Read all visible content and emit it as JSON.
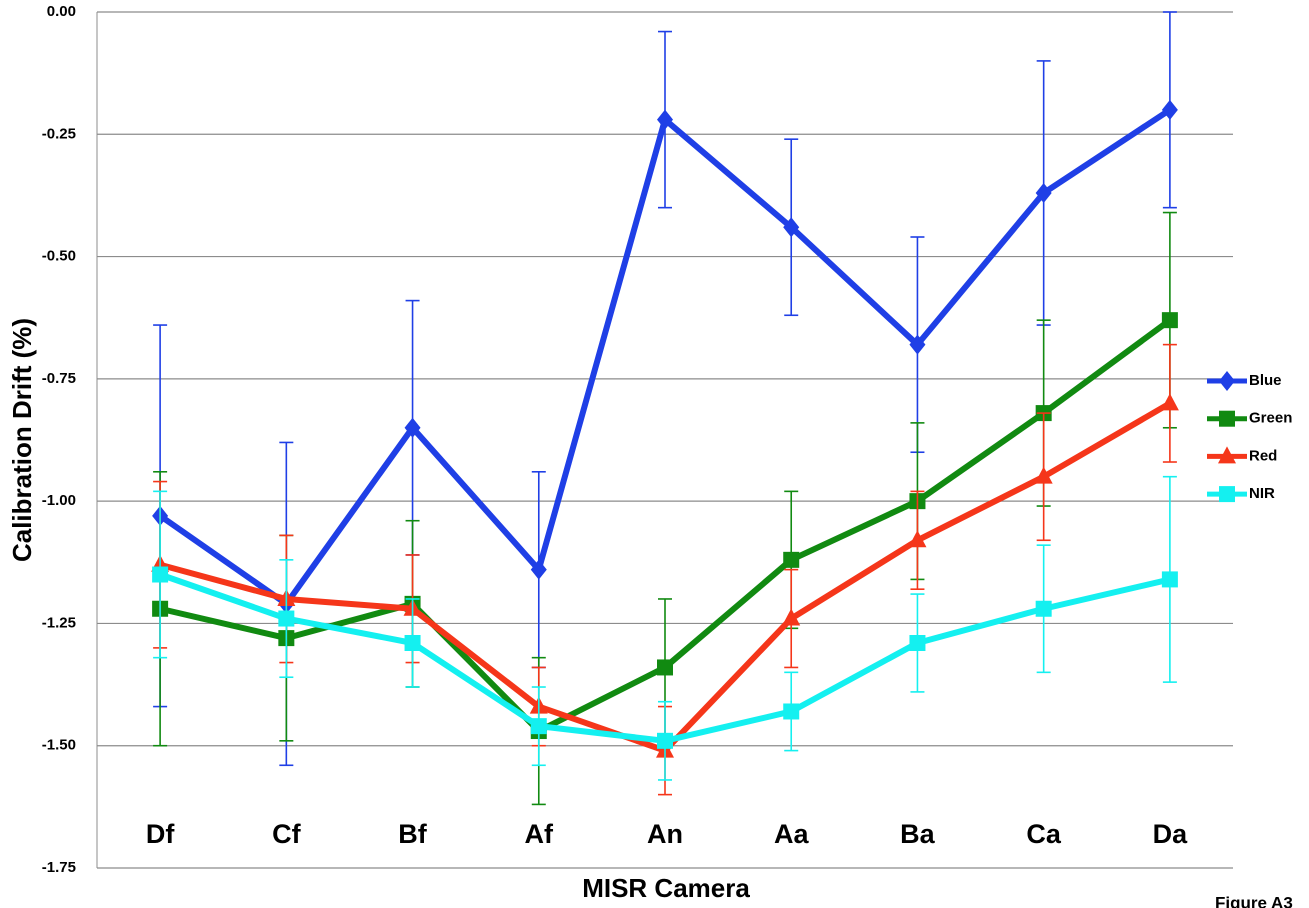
{
  "chart_data": {
    "type": "line",
    "x_label": "MISR Camera",
    "y_label": "Calibration Drift (%)",
    "annotation": "Figure A3",
    "categories": [
      "Df",
      "Cf",
      "Bf",
      "Af",
      "An",
      "Aa",
      "Ba",
      "Ca",
      "Da"
    ],
    "ylim": [
      -1.75,
      0
    ],
    "yticks": [
      {
        "value": 0,
        "label": "0.00"
      },
      -0.25,
      {
        "value": -0.5,
        "label": "-0.50"
      },
      -0.75,
      {
        "value": -1,
        "label": "-1.00"
      },
      -1.25,
      {
        "value": -1.5,
        "label": "-1.50"
      },
      -1.75
    ],
    "grid": true,
    "legend": "right",
    "series": [
      {
        "name": "Blue",
        "color": "#1f3fe6",
        "marker": "diamond",
        "values": [
          -1.03,
          -1.21,
          -0.85,
          -1.14,
          -0.22,
          -0.44,
          -0.68,
          -0.37,
          -0.2
        ],
        "errors": [
          0.39,
          0.33,
          0.26,
          0.2,
          0.18,
          0.18,
          0.22,
          0.27,
          0.2
        ]
      },
      {
        "name": "Green",
        "color": "#118a11",
        "marker": "square",
        "values": [
          -1.22,
          -1.28,
          -1.21,
          -1.47,
          -1.34,
          -1.12,
          -1.0,
          -0.82,
          -0.63
        ],
        "errors": [
          0.28,
          0.21,
          0.17,
          0.15,
          0.14,
          0.14,
          0.16,
          0.19,
          0.22
        ]
      },
      {
        "name": "Red",
        "color": "#f5361a",
        "marker": "triangle",
        "values": [
          -1.13,
          -1.2,
          -1.22,
          -1.42,
          -1.51,
          -1.24,
          -1.08,
          -0.95,
          -0.8
        ],
        "errors": [
          0.17,
          0.13,
          0.11,
          0.08,
          0.09,
          0.1,
          0.1,
          0.13,
          0.12
        ]
      },
      {
        "name": "NIR",
        "color": "#14f0f0",
        "marker": "square",
        "values": [
          -1.15,
          -1.24,
          -1.29,
          -1.46,
          -1.49,
          -1.43,
          -1.29,
          -1.22,
          -1.16
        ],
        "errors": [
          0.17,
          0.12,
          0.09,
          0.08,
          0.08,
          0.08,
          0.1,
          0.13,
          0.21
        ]
      }
    ]
  }
}
